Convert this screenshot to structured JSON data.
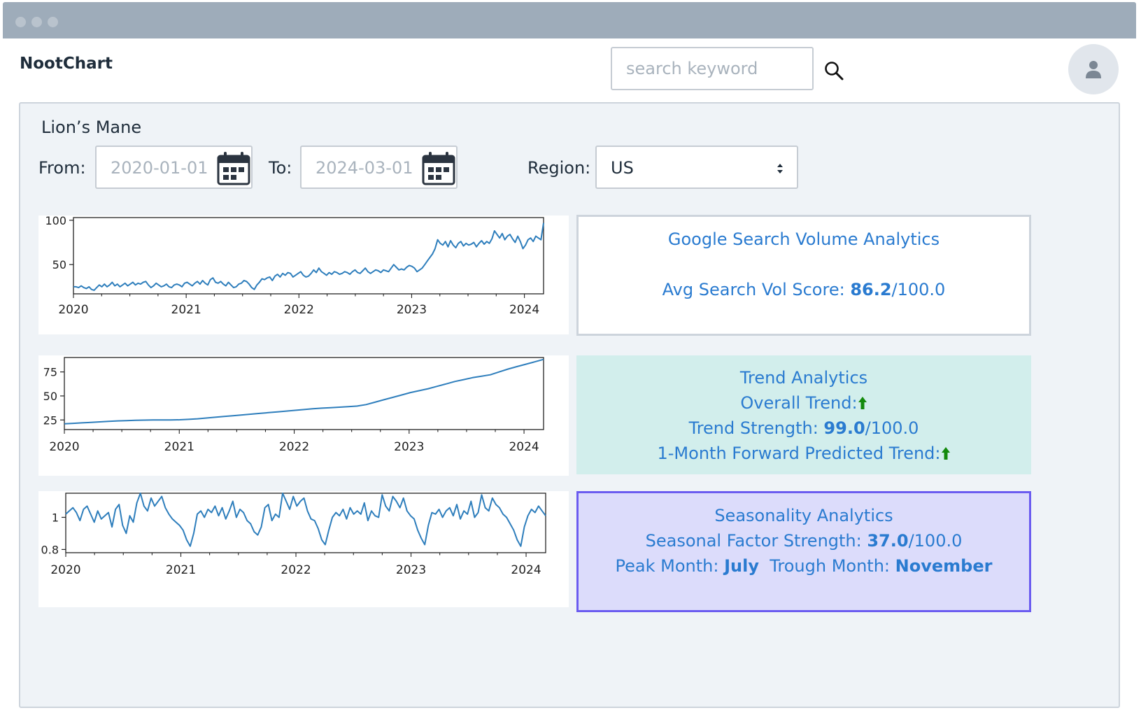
{
  "app": {
    "name": "NootChart"
  },
  "search": {
    "placeholder": "search keyword"
  },
  "filters": {
    "item": "Lion’s Mane",
    "from_label": "From:",
    "from_value": "2020-01-01",
    "to_label": "To:",
    "to_value": "2024-03-01",
    "region_label": "Region:",
    "region_value": "US"
  },
  "cards": {
    "search_volume": {
      "title": "Google Search Volume Analytics",
      "avg_label": "Avg Search Vol Score:",
      "avg_value": "86.2",
      "avg_suffix": "/100.0"
    },
    "trend": {
      "title": "Trend Analytics",
      "overall_label": "Overall Trend:",
      "strength_label": "Trend Strength:",
      "strength_value": "99.0",
      "strength_suffix": "/100.0",
      "forward_label": "1-Month Forward Predicted Trend:",
      "arrow_color": "#138a0c"
    },
    "seasonality": {
      "title": "Seasonality Analytics",
      "factor_label": "Seasonal Factor Strength:",
      "factor_value": "37.0",
      "factor_suffix": "/100.0",
      "peak_label": "Peak Month:",
      "peak_value": "July",
      "trough_label": "Trough Month:",
      "trough_value": "November"
    }
  },
  "colors": {
    "accent": "#2a7bd0",
    "line": "#2e7ebc",
    "trend_card_bg": "#d2eeec",
    "season_card_bg": "#dcdcfb",
    "season_card_border": "#6b5cf0"
  },
  "chart_data": [
    {
      "type": "line",
      "xlabel": "",
      "ylabel": "",
      "x_ticks": [
        "2020",
        "2021",
        "2022",
        "2023",
        "2024"
      ],
      "y_ticks": [
        50,
        100
      ],
      "xlim": [
        2020.0,
        2024.17
      ],
      "ylim": [
        17,
        103
      ],
      "series": [
        {
          "values": [
            25,
            25,
            24,
            26,
            24,
            23,
            25,
            22,
            21,
            24,
            27,
            25,
            28,
            25,
            27,
            30,
            26,
            28,
            25,
            27,
            29,
            26,
            28,
            30,
            27,
            29,
            28,
            30,
            31,
            27,
            24,
            26,
            29,
            27,
            25,
            26,
            28,
            25,
            24,
            27,
            28,
            27,
            25,
            29,
            30,
            28,
            26,
            29,
            31,
            28,
            32,
            29,
            27,
            33,
            35,
            30,
            29,
            31,
            28,
            26,
            30,
            27,
            24,
            25,
            28,
            29,
            32,
            31,
            28,
            24,
            22,
            27,
            30,
            34,
            33,
            35,
            36,
            32,
            37,
            39,
            36,
            40,
            38,
            41,
            40,
            36,
            38,
            40,
            42,
            38,
            36,
            37,
            40,
            44,
            41,
            46,
            42,
            40,
            38,
            41,
            39,
            42,
            41,
            39,
            40,
            42,
            41,
            39,
            42,
            44,
            41,
            40,
            43,
            46,
            42,
            40,
            42,
            44,
            43,
            41,
            44,
            43,
            42,
            46,
            50,
            47,
            44,
            45,
            44,
            47,
            49,
            48,
            46,
            42,
            44,
            46,
            50,
            54,
            58,
            62,
            68,
            78,
            74,
            72,
            76,
            70,
            77,
            72,
            69,
            74,
            76,
            71,
            74,
            72,
            73,
            75,
            70,
            74,
            77,
            73,
            76,
            74,
            79,
            88,
            84,
            80,
            85,
            78,
            82,
            84,
            79,
            75,
            82,
            76,
            68,
            72,
            78,
            80,
            76,
            82,
            80,
            78,
            97
          ]
        }
      ]
    },
    {
      "type": "line",
      "xlabel": "",
      "ylabel": "",
      "x_ticks": [
        "2020",
        "2021",
        "2022",
        "2023",
        "2024"
      ],
      "y_ticks": [
        25,
        50,
        75
      ],
      "xlim": [
        2020.0,
        2024.17
      ],
      "ylim": [
        15,
        90
      ],
      "series": [
        {
          "values": [
            21,
            21.5,
            22,
            22.5,
            23,
            23.5,
            24,
            24.3,
            24.6,
            24.8,
            25,
            25,
            25,
            25.2,
            25.6,
            26.2,
            27,
            27.8,
            28.6,
            29.4,
            30.2,
            31,
            31.8,
            32.6,
            33.4,
            34.2,
            35,
            35.8,
            36.6,
            37.3,
            37.8,
            38.3,
            38.8,
            39.5,
            41,
            43.5,
            46,
            48.5,
            51,
            53.5,
            55.5,
            57.5,
            60,
            62.5,
            65,
            67,
            69,
            70.5,
            72,
            75,
            78,
            80.5,
            83,
            85.5,
            88
          ]
        }
      ]
    },
    {
      "type": "line",
      "xlabel": "",
      "ylabel": "",
      "x_ticks": [
        "2020",
        "2021",
        "2022",
        "2023",
        "2024"
      ],
      "y_ticks": [
        0.8,
        1.0
      ],
      "xlim": [
        2020.0,
        2024.17
      ],
      "ylim": [
        0.78,
        1.15
      ],
      "series": [
        {
          "values": [
            1.02,
            1.04,
            1.06,
            1.03,
            0.98,
            1.05,
            1.07,
            1.02,
            0.97,
            1.04,
            0.99,
            1.01,
            1.03,
            0.94,
            1.05,
            1.08,
            0.95,
            0.9,
            1.01,
            0.97,
            1.09,
            1.15,
            1.07,
            1.04,
            1.12,
            1.07,
            1.1,
            1.13,
            1.06,
            1.02,
            0.99,
            0.97,
            0.95,
            0.92,
            0.86,
            0.82,
            0.9,
            1.02,
            1.04,
            1.0,
            1.05,
            1.03,
            1.07,
            1.01,
            1.06,
            0.99,
            1.04,
            1.1,
            1.0,
            1.05,
            1.03,
            0.98,
            0.96,
            0.91,
            0.89,
            0.94,
            1.06,
            1.08,
            0.98,
            1.02,
            1.0,
            1.15,
            1.1,
            1.05,
            1.13,
            1.07,
            1.1,
            1.12,
            1.04,
            0.99,
            0.98,
            0.93,
            0.86,
            0.83,
            0.92,
            1.0,
            1.03,
            1.01,
            1.05,
            0.99,
            1.06,
            1.02,
            1.04,
            1.02,
            1.09,
            0.98,
            1.04,
            1.01,
            1.0,
            1.14,
            1.07,
            1.04,
            1.13,
            1.1,
            1.06,
            1.12,
            1.04,
            1.01,
            0.99,
            0.92,
            0.87,
            0.83,
            0.95,
            1.03,
            1.02,
            1.05,
            1.0,
            1.04,
            1.06,
            1.01,
            1.08,
            0.99,
            1.04,
            1.02,
            1.1,
            1.0,
            1.03,
            1.14,
            1.06,
            1.04,
            1.12,
            1.08,
            1.06,
            1.02,
            1.0,
            0.96,
            0.92,
            0.86,
            0.82,
            0.94,
            1.01,
            1.05,
            1.03,
            1.07,
            1.04,
            1.01
          ]
        }
      ]
    }
  ]
}
